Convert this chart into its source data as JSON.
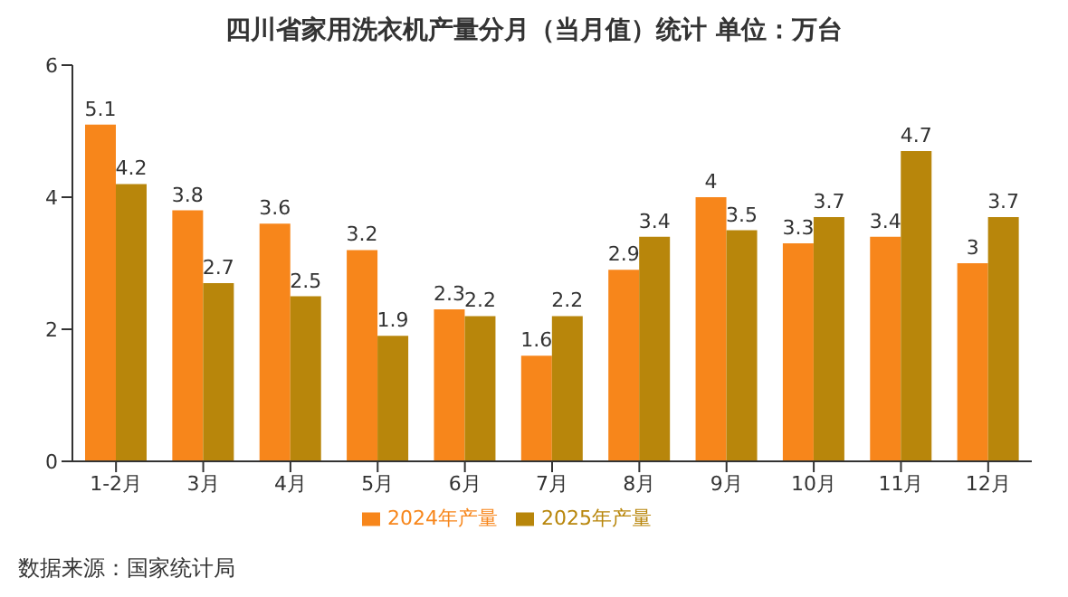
{
  "chart_data": {
    "type": "bar",
    "title": "四川省家用洗衣机产量分月（当月值）统计  单位：万台",
    "categories": [
      "1-2月",
      "3月",
      "4月",
      "5月",
      "6月",
      "7月",
      "8月",
      "9月",
      "10月",
      "11月",
      "12月"
    ],
    "series": [
      {
        "name": "2024年产量",
        "color": "#f7861b",
        "values": [
          5.1,
          3.8,
          3.6,
          3.2,
          2.3,
          1.6,
          2.9,
          4,
          3.3,
          3.4,
          3
        ]
      },
      {
        "name": "2025年产量",
        "color": "#b8860b",
        "values": [
          4.2,
          2.7,
          2.5,
          1.9,
          2.2,
          2.2,
          3.4,
          3.5,
          3.7,
          4.7,
          3.7
        ]
      }
    ],
    "ylim": [
      0,
      6
    ],
    "yticks": [
      0,
      2,
      4,
      6
    ],
    "grid": false,
    "legend": "bottom",
    "data_labels": true,
    "annotations": [
      "数据来源：国家统计局"
    ]
  }
}
